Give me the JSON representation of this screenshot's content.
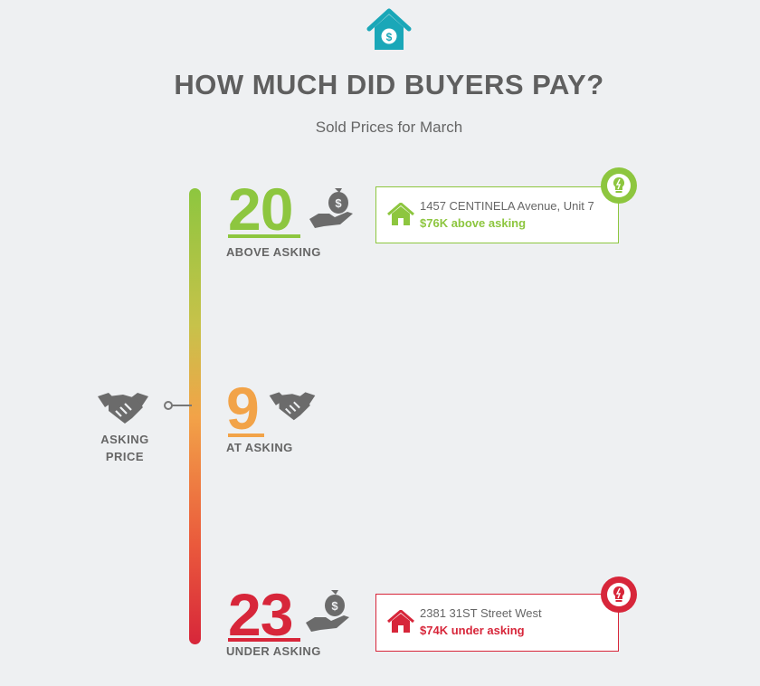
{
  "header": {
    "title": "HOW MUCH DID BUYERS PAY?",
    "subtitle": "Sold Prices for March"
  },
  "icons": {
    "top": "house-dollar-icon",
    "asking": "handshake-icon",
    "above": "hand-money-bag-icon",
    "at": "handshake-icon",
    "under": "hand-money-bag-icon",
    "card_house": "house-icon",
    "badge": "lightbulb-icon"
  },
  "asking_marker": {
    "label_line1": "ASKING",
    "label_line2": "PRICE"
  },
  "categories": {
    "above": {
      "count": "20",
      "label": "ABOVE ASKING",
      "color": "#8dc63f"
    },
    "at": {
      "count": "9",
      "label": "AT ASKING",
      "color": "#f2a348"
    },
    "under": {
      "count": "23",
      "label": "UNDER ASKING",
      "color": "#d7263a"
    }
  },
  "highlights": {
    "above": {
      "address": "1457 CENTINELA Avenue, Unit 7",
      "difference": "$76K above asking"
    },
    "under": {
      "address": "2381 31ST Street West",
      "difference": "$74K under asking"
    }
  },
  "colors": {
    "accent_teal": "#1aa7b8",
    "text_gray": "#5f5f5f",
    "icon_gray": "#6b6b6b",
    "background": "#eef0f2"
  }
}
